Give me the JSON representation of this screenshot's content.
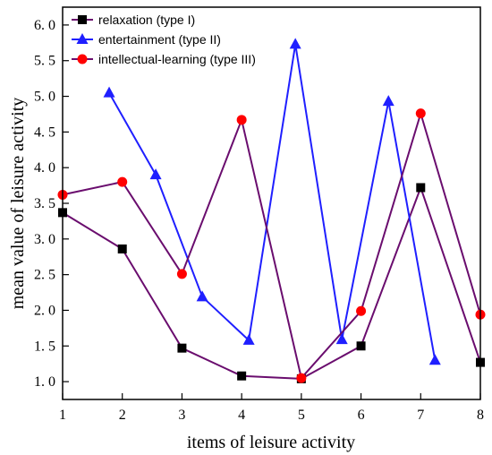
{
  "chart_data": {
    "type": "line",
    "xlabel": "items of leisure activity",
    "ylabel": "mean value of leisure activity",
    "xlim": [
      1,
      8
    ],
    "ylim": [
      0.75,
      6.25
    ],
    "x_ticks": [
      1,
      2,
      3,
      4,
      5,
      6,
      7,
      8
    ],
    "x_tick_labels": [
      "1",
      "2",
      "3",
      "4",
      "5",
      "6",
      "7",
      "8"
    ],
    "y_ticks": [
      1.0,
      1.5,
      2.0,
      2.5,
      3.0,
      3.5,
      4.0,
      4.5,
      5.0,
      5.5,
      6.0
    ],
    "y_tick_labels": [
      "1. 0",
      "1. 5",
      "2. 0",
      "2. 5",
      "3. 0",
      "3. 5",
      "4. 0",
      "4. 5",
      "5. 0",
      "5. 5",
      "6. 0"
    ],
    "grid": false,
    "legend_position": "top-left",
    "series": [
      {
        "name": "relaxation (type I)",
        "color": "#6a0d6e",
        "marker": "square",
        "marker_color": "#000000",
        "x": [
          1,
          2,
          3,
          4,
          5,
          6,
          7,
          8
        ],
        "values": [
          3.37,
          2.86,
          1.47,
          1.08,
          1.04,
          1.5,
          3.72,
          1.27
        ]
      },
      {
        "name": "entertainment (type II)",
        "color": "#1f1fff",
        "marker": "triangle",
        "marker_color": "#1f1fff",
        "x": [
          1.78,
          2.56,
          3.34,
          4.12,
          4.9,
          5.68,
          6.46,
          7.24
        ],
        "values": [
          5.05,
          3.9,
          2.19,
          1.58,
          5.73,
          1.59,
          4.93,
          1.3
        ]
      },
      {
        "name": "intellectual-learning (type III)",
        "color": "#6a0d6e",
        "marker": "circle",
        "marker_color": "#ff0000",
        "x": [
          1,
          2,
          3,
          4,
          5,
          6,
          7,
          8
        ],
        "values": [
          3.62,
          3.8,
          2.51,
          4.67,
          1.05,
          1.99,
          4.76,
          1.94
        ]
      }
    ]
  }
}
